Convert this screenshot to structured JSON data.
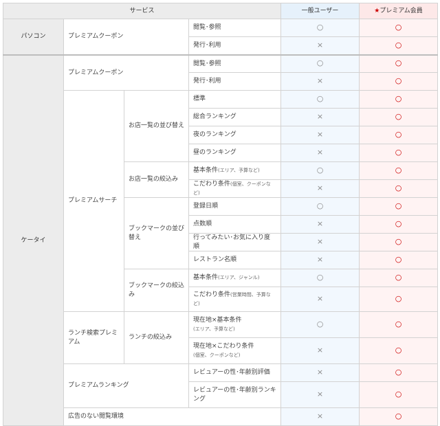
{
  "headers": {
    "service": "サービス",
    "general": "一般ユーザー",
    "premium_star": "★",
    "premium": "プレミアム会員"
  },
  "marks": {
    "yes": "○",
    "no": "×",
    "premium": "○"
  },
  "pc": {
    "label": "パソコン",
    "coupon": "プレミアムクーポン",
    "rows": [
      {
        "label": "閲覧･参照",
        "general": "○",
        "premium": "○"
      },
      {
        "label": "発行･利用",
        "general": "×",
        "premium": "○"
      }
    ]
  },
  "mobile": {
    "label": "ケータイ",
    "coupon": {
      "label": "プレミアムクーポン",
      "rows": [
        {
          "label": "閲覧･参照",
          "general": "○",
          "premium": "○"
        },
        {
          "label": "発行･利用",
          "general": "×",
          "premium": "○"
        }
      ]
    },
    "search": {
      "label": "プレミアムサーチ",
      "sort": {
        "label": "お店一覧の並び替え",
        "rows": [
          {
            "label": "標準",
            "general": "○",
            "premium": "○"
          },
          {
            "label": "総合ランキング",
            "general": "×",
            "premium": "○"
          },
          {
            "label": "夜のランキング",
            "general": "×",
            "premium": "○"
          },
          {
            "label": "昼のランキング",
            "general": "×",
            "premium": "○"
          }
        ]
      },
      "filter": {
        "label": "お店一覧の絞込み",
        "rows": [
          {
            "label": "基本条件",
            "note": "(エリア、予算など)",
            "general": "○",
            "premium": "○"
          },
          {
            "label": "こだわり条件",
            "note": "(個室、クーポンなど)",
            "general": "×",
            "premium": "○"
          }
        ]
      },
      "bm_sort": {
        "label": "ブックマークの並び替え",
        "rows": [
          {
            "label": "登録日順",
            "general": "○",
            "premium": "○"
          },
          {
            "label": "点数順",
            "general": "×",
            "premium": "○"
          },
          {
            "label": "行ってみたい･お気に入り度順",
            "general": "×",
            "premium": "○"
          },
          {
            "label": "レストラン名順",
            "general": "×",
            "premium": "○"
          }
        ]
      },
      "bm_filter": {
        "label": "ブックマークの絞込み",
        "rows": [
          {
            "label": "基本条件",
            "note": "(エリア、ジャンル)",
            "general": "○",
            "premium": "○"
          },
          {
            "label": "こだわり条件",
            "note": "(営業時間、予算など)",
            "general": "×",
            "premium": "○"
          }
        ]
      }
    },
    "lunch": {
      "label": "ランチ検索プレミアム",
      "sub": "ランチの絞込み",
      "rows": [
        {
          "label": "現在地×基本条件",
          "note": "(エリア、予算など)",
          "general": "○",
          "premium": "○"
        },
        {
          "label": "現在地×こだわり条件",
          "note": "(個室、クーポンなど)",
          "general": "×",
          "premium": "○"
        }
      ]
    },
    "ranking": {
      "label": "プレミアムランキング",
      "rows": [
        {
          "label": "レビュアーの性･年齢別評価",
          "general": "×",
          "premium": "○"
        },
        {
          "label": "レビュアーの性･年齢別ランキング",
          "general": "×",
          "premium": "○"
        }
      ]
    },
    "noads": {
      "label": "広告のない閲覧環境",
      "general": "×",
      "premium": "○"
    }
  }
}
